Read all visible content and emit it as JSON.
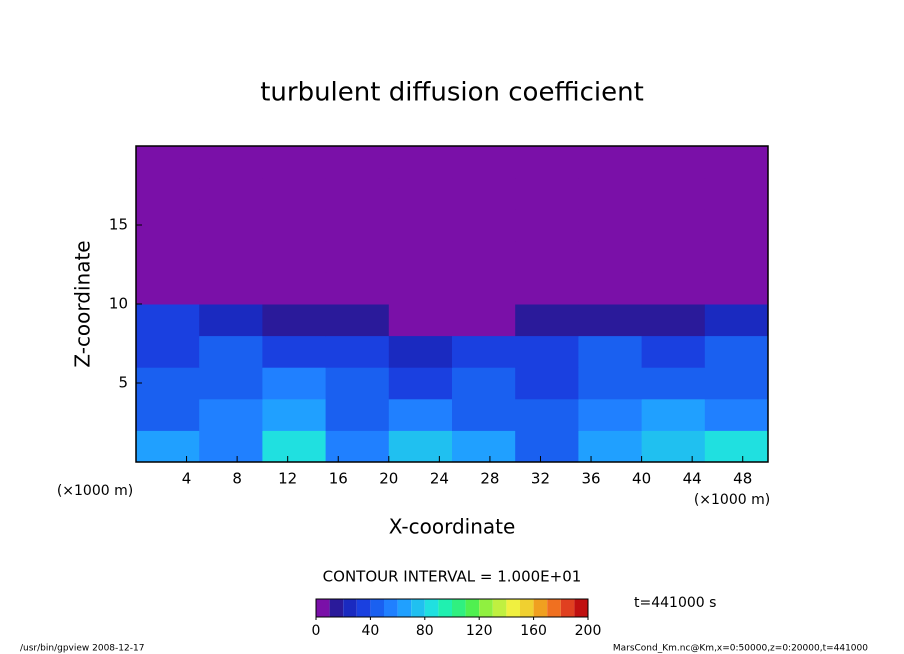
{
  "chart_data": {
    "type": "contour",
    "title": "turbulent diffusion coefficient",
    "x_label": "X-coordinate",
    "y_label": "Z-coordinate",
    "x_unit": "(×1000 m)",
    "y_unit": "(×1000 m)",
    "xlim": [
      0,
      50
    ],
    "ylim": [
      0,
      20
    ],
    "xticks": [
      4,
      8,
      12,
      16,
      20,
      24,
      28,
      32,
      36,
      40,
      44,
      48
    ],
    "yticks": [
      5,
      10,
      15
    ],
    "x_edges": [
      0,
      5,
      10,
      15,
      20,
      25,
      30,
      35,
      40,
      45,
      50
    ],
    "z_edges": [
      0,
      2,
      4,
      6,
      8,
      10,
      12,
      14,
      16,
      18,
      20
    ],
    "values": [
      [
        60,
        55,
        80,
        50,
        75,
        60,
        45,
        65,
        70,
        80
      ],
      [
        45,
        50,
        60,
        45,
        55,
        40,
        40,
        50,
        60,
        55
      ],
      [
        40,
        45,
        50,
        40,
        35,
        40,
        35,
        45,
        45,
        40
      ],
      [
        35,
        40,
        30,
        30,
        20,
        30,
        35,
        40,
        35,
        40
      ],
      [
        30,
        20,
        10,
        15,
        5,
        5,
        10,
        15,
        10,
        25
      ],
      [
        5,
        2,
        2,
        2,
        2,
        2,
        3,
        2,
        3,
        5
      ],
      [
        2,
        2,
        2,
        2,
        2,
        3,
        4,
        3,
        3,
        2
      ],
      [
        3,
        2,
        2,
        2,
        2,
        2,
        3,
        2,
        2,
        3
      ],
      [
        4,
        3,
        2,
        2,
        2,
        2,
        2,
        2,
        2,
        3
      ],
      [
        2,
        2,
        2,
        3,
        2,
        2,
        2,
        2,
        2,
        2
      ]
    ],
    "colorbar": {
      "levels": [
        0,
        10,
        20,
        30,
        40,
        50,
        60,
        70,
        80,
        90,
        100,
        110,
        120,
        130,
        140,
        150,
        160,
        170,
        180,
        190,
        200
      ],
      "colors": [
        "#7a10a8",
        "#2a1a9a",
        "#1a2ac0",
        "#1a40e0",
        "#1a60f0",
        "#2080ff",
        "#20a0ff",
        "#20c0f0",
        "#20e0e0",
        "#20f0b0",
        "#30f080",
        "#50f050",
        "#90f040",
        "#c0f040",
        "#f0f040",
        "#f0d030",
        "#f0a020",
        "#f07020",
        "#e04020",
        "#c01010"
      ],
      "ticks": [
        0,
        40,
        80,
        120,
        160,
        200
      ]
    },
    "contour_interval_label": "CONTOUR INTERVAL = 1.000E+01",
    "time_label": "t=441000 s",
    "footer_left": "/usr/bin/gpview  2008-12-17",
    "footer_right": "MarsCond_Km.nc@Km,x=0:50000,z=0:20000,t=441000"
  }
}
